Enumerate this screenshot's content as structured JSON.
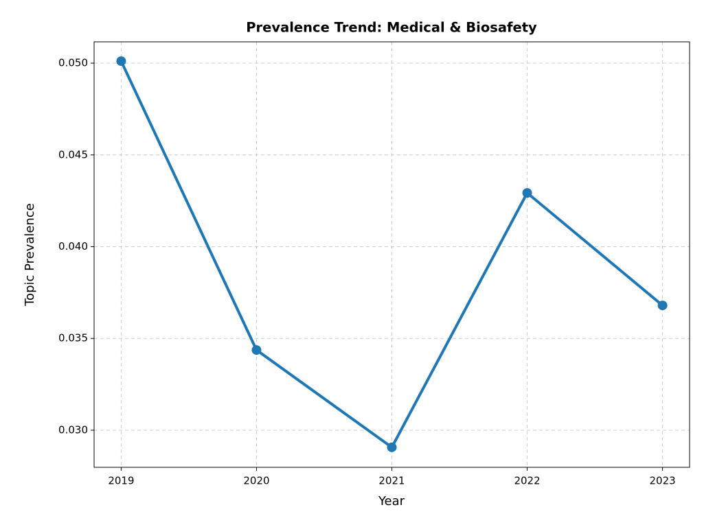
{
  "chart_data": {
    "type": "line",
    "title": "Prevalence Trend: Medical & Biosafety",
    "x_label": "Year",
    "y_label": "Topic Prevalence",
    "x": [
      2019,
      2020,
      2021,
      2022,
      2023
    ],
    "series": [
      {
        "name": "Medical & Biosafety",
        "color": "#1f77b4",
        "values": [
          0.05011,
          0.03437,
          0.02907,
          0.04293,
          0.0368
        ]
      }
    ],
    "xlim": [
      2018.8,
      2023.2
    ],
    "xticks": [
      2019,
      2020,
      2021,
      2022,
      2023
    ],
    "ylim": [
      0.02798,
      0.05116
    ],
    "yticks": [
      {
        "value": 0.03,
        "label": "0.030"
      },
      {
        "value": 0.035,
        "label": "0.035"
      },
      {
        "value": 0.04,
        "label": "0.040"
      },
      {
        "value": 0.045,
        "label": "0.045"
      },
      {
        "value": 0.05,
        "label": "0.050"
      }
    ],
    "grid": true
  }
}
